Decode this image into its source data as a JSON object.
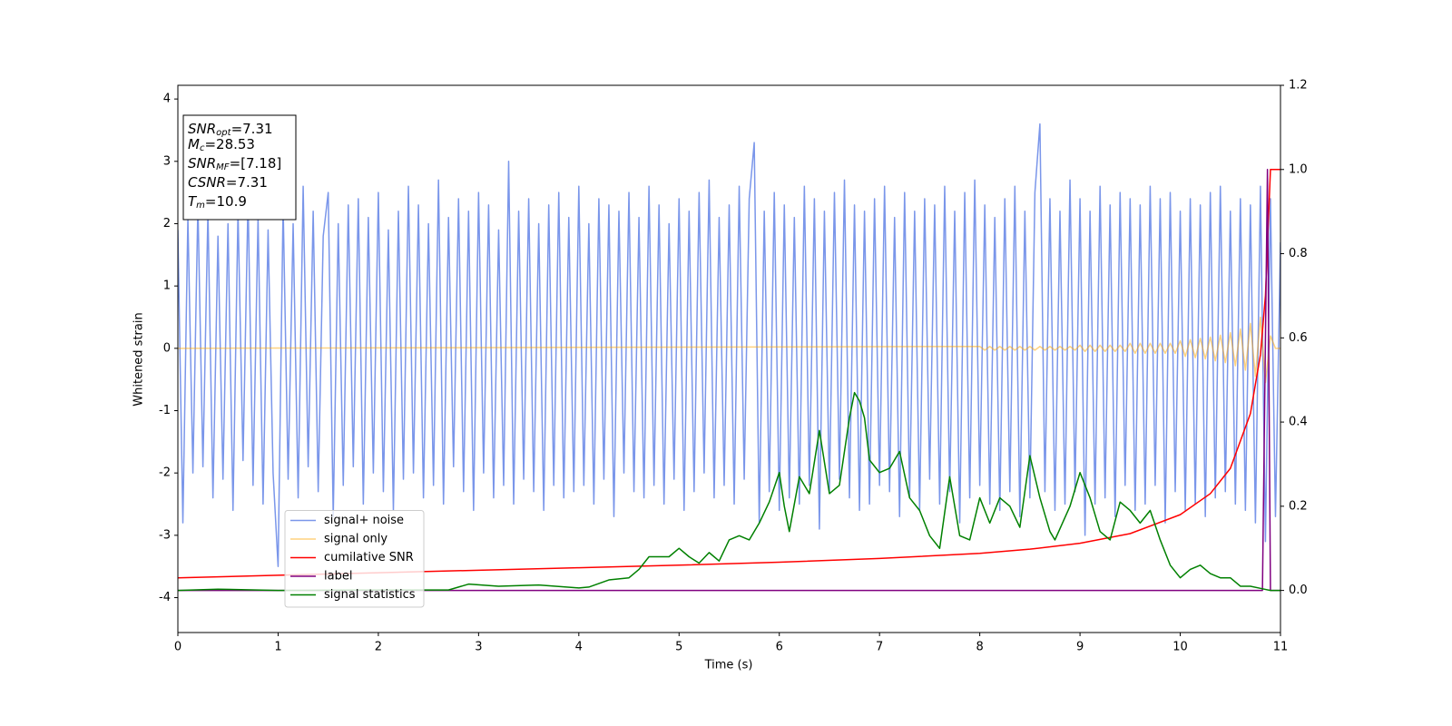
{
  "chart_data": {
    "type": "line",
    "xlabel": "Time (s)",
    "ylabel": "Whitened strain",
    "xlim": [
      0,
      11
    ],
    "xticks": [
      0,
      1,
      2,
      3,
      4,
      5,
      6,
      7,
      8,
      9,
      10,
      11
    ],
    "ylim": [
      -4.56,
      4.22
    ],
    "yticks": [
      -4,
      -3,
      -2,
      -1,
      0,
      1,
      2,
      3,
      4
    ],
    "y2lim": [
      -0.1,
      1.2
    ],
    "y2ticks": [
      {
        "value": 0,
        "label": "0.0"
      },
      {
        "value": 0.2,
        "label": "0.2"
      },
      {
        "value": 0.4,
        "label": "0.4"
      },
      {
        "value": 0.6,
        "label": "0.6"
      },
      {
        "value": 0.8,
        "label": "0.8"
      },
      {
        "value": 1.0,
        "label": "1.0"
      },
      {
        "value": 1.2,
        "label": "1.2"
      }
    ],
    "legend": "lower left",
    "stats": [
      {
        "name": "SNR",
        "sub": "opt",
        "value": "=7.31"
      },
      {
        "name": "M",
        "sub": "c",
        "value": "=28.53"
      },
      {
        "name": "SNR",
        "sub": "MF",
        "value": "=[7.18]"
      },
      {
        "name": "CSNR",
        "value": "=7.31"
      },
      {
        "name": "T",
        "sub": "m",
        "value": "=10.9"
      }
    ],
    "series": [
      {
        "name": "signal+ noise",
        "color": "#4169e1",
        "opacity": 0.7,
        "x": [
          0,
          0.05,
          0.1,
          0.15,
          0.2,
          0.25,
          0.3,
          0.35,
          0.4,
          0.45,
          0.5,
          0.55,
          0.6,
          0.65,
          0.7,
          0.75,
          0.8,
          0.85,
          0.9,
          0.95,
          1,
          1.05,
          1.1,
          1.15,
          1.2,
          1.25,
          1.3,
          1.35,
          1.4,
          1.45,
          1.5,
          1.55,
          1.6,
          1.65,
          1.7,
          1.75,
          1.8,
          1.85,
          1.9,
          1.95,
          2,
          2.05,
          2.1,
          2.15,
          2.2,
          2.25,
          2.3,
          2.35,
          2.4,
          2.45,
          2.5,
          2.55,
          2.6,
          2.65,
          2.7,
          2.75,
          2.8,
          2.85,
          2.9,
          2.95,
          3,
          3.05,
          3.1,
          3.15,
          3.2,
          3.25,
          3.3,
          3.35,
          3.4,
          3.45,
          3.5,
          3.55,
          3.6,
          3.65,
          3.7,
          3.75,
          3.8,
          3.85,
          3.9,
          3.95,
          4,
          4.05,
          4.1,
          4.15,
          4.2,
          4.25,
          4.3,
          4.35,
          4.4,
          4.45,
          4.5,
          4.55,
          4.6,
          4.65,
          4.7,
          4.75,
          4.8,
          4.85,
          4.9,
          4.95,
          5,
          5.05,
          5.1,
          5.15,
          5.2,
          5.25,
          5.3,
          5.35,
          5.4,
          5.45,
          5.5,
          5.55,
          5.6,
          5.65,
          5.7,
          5.75,
          5.8,
          5.85,
          5.9,
          5.95,
          6,
          6.05,
          6.1,
          6.15,
          6.2,
          6.25,
          6.3,
          6.35,
          6.4,
          6.45,
          6.5,
          6.55,
          6.6,
          6.65,
          6.7,
          6.75,
          6.8,
          6.85,
          6.9,
          6.95,
          7,
          7.05,
          7.1,
          7.15,
          7.2,
          7.25,
          7.3,
          7.35,
          7.4,
          7.45,
          7.5,
          7.55,
          7.6,
          7.65,
          7.7,
          7.75,
          7.8,
          7.85,
          7.9,
          7.95,
          8,
          8.05,
          8.1,
          8.15,
          8.2,
          8.25,
          8.3,
          8.35,
          8.4,
          8.45,
          8.5,
          8.55,
          8.6,
          8.65,
          8.7,
          8.75,
          8.8,
          8.85,
          8.9,
          8.95,
          9,
          9.05,
          9.1,
          9.15,
          9.2,
          9.25,
          9.3,
          9.35,
          9.4,
          9.45,
          9.5,
          9.55,
          9.6,
          9.65,
          9.7,
          9.75,
          9.8,
          9.85,
          9.9,
          9.95,
          10,
          10.05,
          10.1,
          10.15,
          10.2,
          10.25,
          10.3,
          10.35,
          10.4,
          10.45,
          10.5,
          10.55,
          10.6,
          10.65,
          10.7,
          10.75,
          10.8,
          10.85,
          10.9,
          10.95,
          11
        ],
        "values": [
          1.9,
          -2.8,
          2.1,
          -2.0,
          2.3,
          -1.9,
          2.2,
          -2.4,
          1.8,
          -2.1,
          2.0,
          -2.6,
          2.2,
          -1.8,
          2.4,
          -2.2,
          2.1,
          -2.5,
          1.9,
          -2.0,
          -3.5,
          2.3,
          -2.1,
          2.0,
          -2.4,
          2.6,
          -1.9,
          2.2,
          -2.3,
          1.8,
          2.5,
          -2.7,
          2.0,
          -2.2,
          2.3,
          -1.9,
          2.4,
          -2.5,
          2.1,
          -2.0,
          2.5,
          -2.3,
          1.9,
          -2.6,
          2.2,
          -2.1,
          2.6,
          -2.0,
          2.3,
          -2.4,
          2.0,
          -2.2,
          2.7,
          -2.5,
          2.1,
          -1.9,
          2.4,
          -2.3,
          2.2,
          -2.6,
          2.5,
          -2.0,
          2.3,
          -2.4,
          1.9,
          -2.2,
          3.0,
          -2.5,
          2.2,
          -2.1,
          2.4,
          -2.3,
          2.0,
          -2.6,
          2.3,
          -2.2,
          2.5,
          -2.4,
          2.1,
          -2.3,
          2.6,
          -2.2,
          2.0,
          -2.5,
          2.4,
          -2.1,
          2.3,
          -2.7,
          2.2,
          -2.0,
          2.5,
          -2.3,
          2.1,
          -2.4,
          2.6,
          -2.2,
          2.3,
          -2.5,
          2.0,
          -2.1,
          2.4,
          -2.6,
          2.2,
          -2.3,
          2.5,
          -2.0,
          2.7,
          -2.4,
          2.1,
          -2.2,
          2.3,
          -2.5,
          2.6,
          -2.1,
          2.4,
          3.3,
          -2.8,
          2.2,
          -2.3,
          2.5,
          -2.6,
          2.3,
          -2.4,
          2.1,
          -2.5,
          2.6,
          -2.2,
          2.4,
          -2.9,
          2.2,
          -2.3,
          2.5,
          -2.1,
          2.7,
          -2.4,
          2.3,
          -2.6,
          2.2,
          -2.5,
          2.4,
          -2.2,
          2.6,
          -2.3,
          2.1,
          -2.7,
          2.5,
          -2.4,
          2.2,
          -2.6,
          2.4,
          -2.1,
          2.3,
          -2.5,
          2.6,
          -2.3,
          2.2,
          -2.8,
          2.5,
          -2.4,
          2.7,
          -2.2,
          2.3,
          -2.5,
          2.1,
          -2.6,
          2.4,
          -2.3,
          2.6,
          -2.7,
          2.2,
          -2.4,
          2.5,
          3.6,
          -2.3,
          2.4,
          -2.6,
          2.2,
          -2.5,
          2.7,
          -2.3,
          2.4,
          -3.0,
          2.2,
          -2.5,
          2.6,
          -2.4,
          2.3,
          -2.7,
          2.5,
          -2.2,
          2.4,
          -2.6,
          2.3,
          -2.5,
          2.6,
          -2.2,
          2.4,
          -2.8,
          2.5,
          -2.3,
          2.2,
          -2.6,
          2.4,
          -2.5,
          2.3,
          -2.7,
          2.5,
          -2.4,
          2.6,
          -2.3,
          2.2,
          -2.5,
          2.4,
          -2.6,
          2.3,
          -2.8,
          2.6,
          -3.1,
          2.4,
          -2.7,
          1.7
        ]
      },
      {
        "name": "signal only",
        "color": "#ffa500",
        "opacity": 0.5,
        "x": [
          0,
          8,
          8.05,
          8.1,
          8.15,
          8.2,
          8.25,
          8.3,
          8.35,
          8.4,
          8.45,
          8.5,
          8.55,
          8.6,
          8.65,
          8.7,
          8.75,
          8.8,
          8.85,
          8.9,
          8.95,
          9,
          9.05,
          9.1,
          9.15,
          9.2,
          9.25,
          9.3,
          9.35,
          9.4,
          9.45,
          9.5,
          9.55,
          9.6,
          9.65,
          9.7,
          9.75,
          9.8,
          9.85,
          9.9,
          9.95,
          10,
          10.05,
          10.1,
          10.15,
          10.2,
          10.25,
          10.3,
          10.35,
          10.4,
          10.45,
          10.5,
          10.55,
          10.6,
          10.65,
          10.7,
          10.75,
          10.8,
          10.85,
          10.9,
          10.95,
          11
        ],
        "values": [
          0,
          0.03,
          -0.03,
          0.03,
          -0.03,
          0.03,
          -0.03,
          0.03,
          -0.03,
          0.03,
          -0.03,
          0.03,
          -0.03,
          0.03,
          -0.03,
          0.03,
          -0.03,
          0.03,
          -0.03,
          0.03,
          -0.03,
          0.05,
          -0.05,
          0.05,
          -0.05,
          0.05,
          -0.05,
          0.05,
          -0.05,
          0.05,
          -0.05,
          0.08,
          -0.08,
          0.08,
          -0.08,
          0.08,
          -0.08,
          0.08,
          -0.08,
          0.08,
          -0.08,
          0.12,
          -0.13,
          0.14,
          -0.15,
          0.16,
          -0.17,
          0.18,
          -0.2,
          0.21,
          -0.23,
          0.25,
          -0.28,
          0.31,
          -0.35,
          0.4,
          -0.45,
          0.5,
          -0.55,
          0.2,
          0,
          0
        ]
      },
      {
        "name": "cumilative SNR",
        "color": "#ff0000",
        "axis": "y2",
        "x": [
          0,
          1,
          2,
          3,
          4,
          5,
          6,
          7,
          8,
          8.5,
          9,
          9.5,
          10,
          10.3,
          10.5,
          10.7,
          10.8,
          10.85,
          10.88,
          10.9,
          11
        ],
        "values": [
          0.03,
          0.036,
          0.042,
          0.048,
          0.054,
          0.06,
          0.067,
          0.076,
          0.088,
          0.098,
          0.112,
          0.135,
          0.18,
          0.23,
          0.29,
          0.42,
          0.56,
          0.7,
          0.88,
          1.0,
          1.0
        ]
      },
      {
        "name": "label",
        "color": "#800080",
        "axis": "y2",
        "x": [
          0,
          10.82,
          10.87,
          10.9,
          11
        ],
        "values": [
          0,
          0,
          1,
          0,
          0
        ]
      },
      {
        "name": "signal statistics",
        "color": "#008000",
        "axis": "y2",
        "x": [
          0,
          0.4,
          1,
          2,
          2.7,
          2.9,
          3.2,
          3.6,
          4.0,
          4.1,
          4.3,
          4.5,
          4.6,
          4.7,
          4.9,
          5.0,
          5.1,
          5.2,
          5.3,
          5.4,
          5.5,
          5.6,
          5.7,
          5.8,
          5.9,
          6.0,
          6.05,
          6.1,
          6.2,
          6.3,
          6.4,
          6.5,
          6.6,
          6.7,
          6.75,
          6.8,
          6.85,
          6.9,
          7.0,
          7.1,
          7.2,
          7.3,
          7.4,
          7.5,
          7.6,
          7.7,
          7.8,
          7.9,
          8.0,
          8.1,
          8.2,
          8.3,
          8.4,
          8.5,
          8.6,
          8.7,
          8.75,
          8.9,
          9.0,
          9.1,
          9.2,
          9.3,
          9.4,
          9.5,
          9.6,
          9.7,
          9.8,
          9.9,
          10.0,
          10.1,
          10.2,
          10.3,
          10.4,
          10.5,
          10.6,
          10.7,
          10.8,
          10.9,
          11
        ],
        "values": [
          0,
          0.003,
          0,
          0.001,
          0.001,
          0.015,
          0.01,
          0.013,
          0.006,
          0.008,
          0.025,
          0.03,
          0.05,
          0.08,
          0.08,
          0.1,
          0.08,
          0.065,
          0.09,
          0.07,
          0.12,
          0.13,
          0.12,
          0.16,
          0.21,
          0.28,
          0.2,
          0.14,
          0.27,
          0.23,
          0.38,
          0.23,
          0.25,
          0.41,
          0.47,
          0.45,
          0.41,
          0.31,
          0.28,
          0.29,
          0.33,
          0.22,
          0.19,
          0.13,
          0.1,
          0.27,
          0.13,
          0.12,
          0.22,
          0.16,
          0.22,
          0.2,
          0.15,
          0.32,
          0.22,
          0.14,
          0.12,
          0.2,
          0.28,
          0.22,
          0.14,
          0.12,
          0.21,
          0.19,
          0.16,
          0.19,
          0.12,
          0.06,
          0.03,
          0.05,
          0.06,
          0.04,
          0.03,
          0.03,
          0.01,
          0.01,
          0.005,
          0.0,
          0.0
        ]
      }
    ]
  }
}
